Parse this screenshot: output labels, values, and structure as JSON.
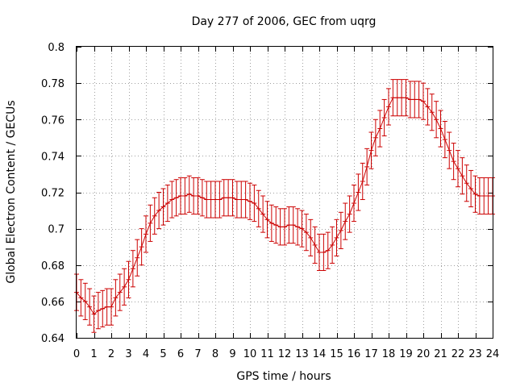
{
  "chart_data": {
    "type": "errorbar",
    "title": "Day 277 of 2006, GEC from uqrg",
    "xlabel": "GPS time / hours",
    "ylabel": "Global Electron Content / GECUs",
    "xlim": [
      0,
      24
    ],
    "ylim": [
      0.64,
      0.8
    ],
    "xticks": [
      0,
      1,
      2,
      3,
      4,
      5,
      6,
      7,
      8,
      9,
      10,
      11,
      12,
      13,
      14,
      15,
      16,
      17,
      18,
      19,
      20,
      21,
      22,
      23,
      24
    ],
    "yticks": [
      0.64,
      0.66,
      0.68,
      0.7,
      0.72,
      0.74,
      0.76,
      0.78,
      0.8
    ],
    "ytick_labels": [
      "0.64",
      "0.66",
      "0.68",
      "0.7",
      "0.72",
      "0.74",
      "0.76",
      "0.78",
      "0.8"
    ],
    "grid": true,
    "error": 0.01,
    "color": "#cc0000",
    "x": [
      0,
      0.25,
      0.5,
      0.75,
      1,
      1.25,
      1.5,
      1.75,
      2,
      2.25,
      2.5,
      2.75,
      3,
      3.25,
      3.5,
      3.75,
      4,
      4.25,
      4.5,
      4.75,
      5,
      5.25,
      5.5,
      5.75,
      6,
      6.25,
      6.5,
      6.75,
      7,
      7.25,
      7.5,
      7.75,
      8,
      8.25,
      8.5,
      8.75,
      9,
      9.25,
      9.5,
      9.75,
      10,
      10.25,
      10.5,
      10.75,
      11,
      11.25,
      11.5,
      11.75,
      12,
      12.25,
      12.5,
      12.75,
      13,
      13.25,
      13.5,
      13.75,
      14,
      14.25,
      14.5,
      14.75,
      15,
      15.25,
      15.5,
      15.75,
      16,
      16.25,
      16.5,
      16.75,
      17,
      17.25,
      17.5,
      17.75,
      18,
      18.25,
      18.5,
      18.75,
      19,
      19.25,
      19.5,
      19.75,
      20,
      20.25,
      20.5,
      20.75,
      21,
      21.25,
      21.5,
      21.75,
      22,
      22.25,
      22.5,
      22.75,
      23,
      23.25,
      23.5,
      23.75,
      24
    ],
    "y": [
      0.665,
      0.662,
      0.66,
      0.657,
      0.653,
      0.655,
      0.656,
      0.657,
      0.657,
      0.662,
      0.665,
      0.668,
      0.672,
      0.678,
      0.684,
      0.69,
      0.697,
      0.703,
      0.707,
      0.71,
      0.712,
      0.714,
      0.716,
      0.717,
      0.718,
      0.718,
      0.719,
      0.718,
      0.718,
      0.717,
      0.716,
      0.716,
      0.716,
      0.716,
      0.717,
      0.717,
      0.717,
      0.716,
      0.716,
      0.716,
      0.715,
      0.714,
      0.711,
      0.708,
      0.705,
      0.703,
      0.702,
      0.701,
      0.701,
      0.702,
      0.702,
      0.701,
      0.7,
      0.698,
      0.695,
      0.691,
      0.687,
      0.687,
      0.688,
      0.691,
      0.695,
      0.699,
      0.704,
      0.708,
      0.714,
      0.72,
      0.726,
      0.734,
      0.743,
      0.75,
      0.755,
      0.761,
      0.767,
      0.772,
      0.772,
      0.772,
      0.772,
      0.771,
      0.771,
      0.771,
      0.77,
      0.767,
      0.764,
      0.76,
      0.755,
      0.749,
      0.743,
      0.737,
      0.733,
      0.729,
      0.725,
      0.722,
      0.719,
      0.718,
      0.718,
      0.718,
      0.718
    ]
  }
}
